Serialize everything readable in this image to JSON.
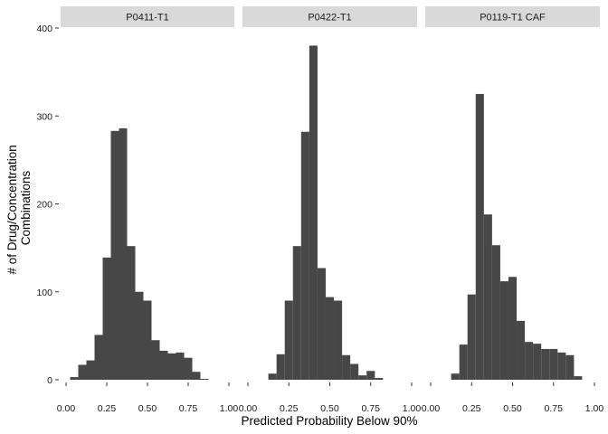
{
  "chart_data": {
    "type": "bar",
    "subtype": "faceted-histogram",
    "xlabel": "Predicted Probability Below 90%",
    "ylabel": [
      "# of Drug/Concentration",
      "Combinations"
    ],
    "xlim": [
      0,
      1
    ],
    "ylim": [
      0,
      400
    ],
    "x_ticks": [
      "0.00",
      "0.25",
      "0.50",
      "0.75",
      "1.00"
    ],
    "y_ticks": [
      "0",
      "100",
      "200",
      "300",
      "400"
    ],
    "bin_width": 0.05,
    "grid": false,
    "legend": "none",
    "colors": {
      "bar": "#474747",
      "strip": "#d9d9d9",
      "axis": "#333333"
    },
    "panels": [
      {
        "name": "P0411-T1",
        "bins": [
          {
            "x": 0.05,
            "count": 3
          },
          {
            "x": 0.1,
            "count": 17
          },
          {
            "x": 0.15,
            "count": 22
          },
          {
            "x": 0.2,
            "count": 51
          },
          {
            "x": 0.25,
            "count": 139
          },
          {
            "x": 0.3,
            "count": 283
          },
          {
            "x": 0.35,
            "count": 286
          },
          {
            "x": 0.4,
            "count": 152
          },
          {
            "x": 0.45,
            "count": 100
          },
          {
            "x": 0.5,
            "count": 90
          },
          {
            "x": 0.55,
            "count": 45
          },
          {
            "x": 0.6,
            "count": 33
          },
          {
            "x": 0.65,
            "count": 30
          },
          {
            "x": 0.7,
            "count": 31
          },
          {
            "x": 0.75,
            "count": 25
          },
          {
            "x": 0.8,
            "count": 9
          },
          {
            "x": 0.85,
            "count": 1
          }
        ]
      },
      {
        "name": "P0422-T1",
        "bins": [
          {
            "x": 0.15,
            "count": 7
          },
          {
            "x": 0.2,
            "count": 29
          },
          {
            "x": 0.25,
            "count": 90
          },
          {
            "x": 0.3,
            "count": 152
          },
          {
            "x": 0.35,
            "count": 282
          },
          {
            "x": 0.4,
            "count": 380
          },
          {
            "x": 0.45,
            "count": 127
          },
          {
            "x": 0.5,
            "count": 94
          },
          {
            "x": 0.55,
            "count": 90
          },
          {
            "x": 0.6,
            "count": 28
          },
          {
            "x": 0.65,
            "count": 18
          },
          {
            "x": 0.7,
            "count": 5
          },
          {
            "x": 0.75,
            "count": 10
          },
          {
            "x": 0.8,
            "count": 2
          }
        ]
      },
      {
        "name": "P0119-T1 CAF",
        "bins": [
          {
            "x": 0.15,
            "count": 7
          },
          {
            "x": 0.2,
            "count": 40
          },
          {
            "x": 0.25,
            "count": 97
          },
          {
            "x": 0.3,
            "count": 325
          },
          {
            "x": 0.35,
            "count": 188
          },
          {
            "x": 0.4,
            "count": 153
          },
          {
            "x": 0.45,
            "count": 112
          },
          {
            "x": 0.5,
            "count": 117
          },
          {
            "x": 0.55,
            "count": 67
          },
          {
            "x": 0.6,
            "count": 43
          },
          {
            "x": 0.65,
            "count": 41
          },
          {
            "x": 0.7,
            "count": 35
          },
          {
            "x": 0.75,
            "count": 35
          },
          {
            "x": 0.8,
            "count": 31
          },
          {
            "x": 0.85,
            "count": 28
          },
          {
            "x": 0.9,
            "count": 4
          }
        ]
      }
    ]
  }
}
